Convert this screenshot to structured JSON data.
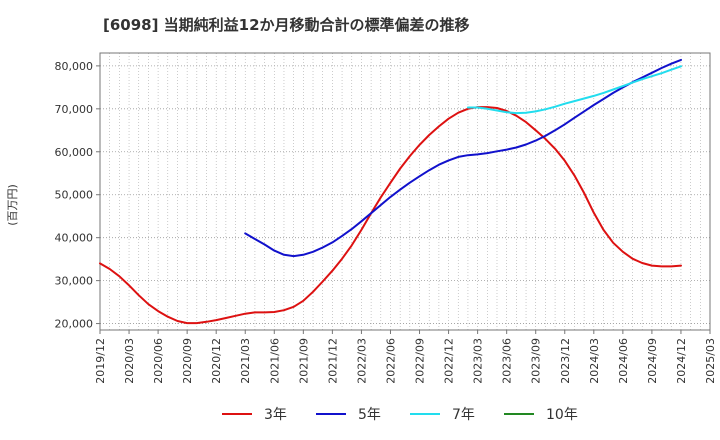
{
  "chart_data": {
    "type": "line",
    "title": "[6098]  当期純利益12か月移動合計の標準偏差の推移",
    "ylabel": "(百万円)",
    "xlabel": "",
    "ylim": [
      18500,
      83000
    ],
    "xlim": [
      "2019-12",
      "2025-03"
    ],
    "yticks": [
      20000,
      30000,
      40000,
      50000,
      60000,
      70000,
      80000
    ],
    "ytick_labels": [
      "20,000",
      "30,000",
      "40,000",
      "50,000",
      "60,000",
      "70,000",
      "80,000"
    ],
    "xtick_labels": [
      "2019/12",
      "2020/03",
      "2020/06",
      "2020/09",
      "2020/12",
      "2021/03",
      "2021/06",
      "2021/09",
      "2021/12",
      "2022/03",
      "2022/06",
      "2022/09",
      "2022/12",
      "2023/03",
      "2023/06",
      "2023/09",
      "2023/12",
      "2024/03",
      "2024/06",
      "2024/09",
      "2024/12",
      "2025/03"
    ],
    "grid": true,
    "legend_position": "bottom",
    "series": [
      {
        "name": "3年",
        "color": "#dd1111",
        "x": [
          "2019-12",
          "2020-01",
          "2020-02",
          "2020-03",
          "2020-04",
          "2020-05",
          "2020-06",
          "2020-07",
          "2020-08",
          "2020-09",
          "2020-10",
          "2020-11",
          "2020-12",
          "2021-01",
          "2021-02",
          "2021-03",
          "2021-04",
          "2021-05",
          "2021-06",
          "2021-07",
          "2021-08",
          "2021-09",
          "2021-10",
          "2021-11",
          "2021-12",
          "2022-01",
          "2022-02",
          "2022-03",
          "2022-04",
          "2022-05",
          "2022-06",
          "2022-07",
          "2022-08",
          "2022-09",
          "2022-10",
          "2022-11",
          "2022-12",
          "2023-01",
          "2023-02",
          "2023-03",
          "2023-04",
          "2023-05",
          "2023-06",
          "2023-07",
          "2023-08",
          "2023-09",
          "2023-10",
          "2023-11",
          "2023-12",
          "2024-01",
          "2024-02",
          "2024-03",
          "2024-04",
          "2024-05",
          "2024-06",
          "2024-07",
          "2024-08",
          "2024-09",
          "2024-10",
          "2024-11",
          "2024-12"
        ],
        "values": [
          34000,
          32700,
          31000,
          28900,
          26600,
          24500,
          22900,
          21600,
          20600,
          20100,
          20100,
          20400,
          20800,
          21300,
          21800,
          22300,
          22600,
          22600,
          22700,
          23100,
          23900,
          25300,
          27400,
          29800,
          32300,
          35100,
          38200,
          41800,
          45700,
          49400,
          52800,
          56100,
          59000,
          61600,
          63900,
          65900,
          67700,
          69100,
          70000,
          70400,
          70400,
          70200,
          69500,
          68400,
          66900,
          65000,
          63000,
          60700,
          57900,
          54500,
          50400,
          45800,
          41800,
          38800,
          36700,
          35100,
          34100,
          33500,
          33300,
          33300,
          33500
        ]
      },
      {
        "name": "5年",
        "color": "#1111cc",
        "x": [
          "2021-03",
          "2021-04",
          "2021-05",
          "2021-06",
          "2021-07",
          "2021-08",
          "2021-09",
          "2021-10",
          "2021-11",
          "2021-12",
          "2022-01",
          "2022-02",
          "2022-03",
          "2022-04",
          "2022-05",
          "2022-06",
          "2022-07",
          "2022-08",
          "2022-09",
          "2022-10",
          "2022-11",
          "2022-12",
          "2023-01",
          "2023-02",
          "2023-03",
          "2023-04",
          "2023-05",
          "2023-06",
          "2023-07",
          "2023-08",
          "2023-09",
          "2023-10",
          "2023-11",
          "2023-12",
          "2024-01",
          "2024-02",
          "2024-03",
          "2024-04",
          "2024-05",
          "2024-06",
          "2024-07",
          "2024-08",
          "2024-09",
          "2024-10",
          "2024-11",
          "2024-12"
        ],
        "values": [
          41000,
          39700,
          38400,
          37000,
          36000,
          35700,
          36000,
          36700,
          37700,
          38900,
          40400,
          42000,
          43800,
          45700,
          47600,
          49500,
          51200,
          52800,
          54300,
          55700,
          57000,
          58000,
          58800,
          59200,
          59400,
          59700,
          60100,
          60500,
          61000,
          61700,
          62600,
          63700,
          65000,
          66400,
          67900,
          69400,
          70900,
          72300,
          73700,
          75000,
          76200,
          77300,
          78400,
          79500,
          80500,
          81400
        ]
      },
      {
        "name": "7年",
        "color": "#22ddee",
        "x": [
          "2023-02",
          "2023-03",
          "2023-04",
          "2023-05",
          "2023-06",
          "2023-07",
          "2023-08",
          "2023-09",
          "2023-10",
          "2023-11",
          "2023-12",
          "2024-01",
          "2024-02",
          "2024-03",
          "2024-04",
          "2024-05",
          "2024-06",
          "2024-07",
          "2024-08",
          "2024-09",
          "2024-10",
          "2024-11",
          "2024-12"
        ],
        "values": [
          70300,
          70300,
          70000,
          69600,
          69200,
          69000,
          69100,
          69400,
          69900,
          70500,
          71200,
          71800,
          72400,
          73000,
          73700,
          74500,
          75300,
          76100,
          76900,
          77600,
          78300,
          79100,
          79900
        ]
      },
      {
        "name": "10年",
        "color": "#228822",
        "x": [],
        "values": []
      }
    ]
  }
}
